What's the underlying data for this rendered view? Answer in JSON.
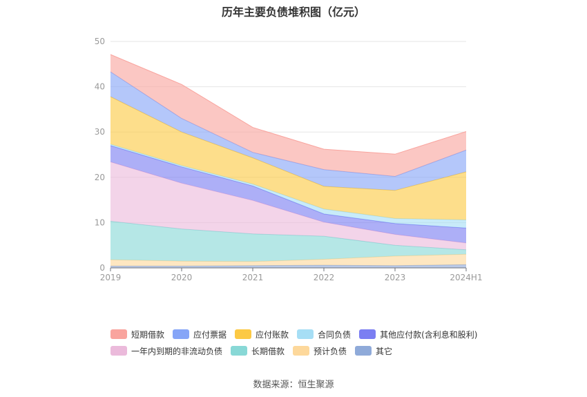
{
  "chart_data": {
    "type": "area",
    "stacked": true,
    "title": "历年主要负债堆积图（亿元）",
    "source": "数据来源：恒生聚源",
    "categories": [
      "2019",
      "2020",
      "2021",
      "2022",
      "2023",
      "2024H1"
    ],
    "ylim": [
      0,
      50
    ],
    "yticks": [
      0,
      10,
      20,
      30,
      40,
      50
    ],
    "grid": true,
    "legend_position": "bottom",
    "series": [
      {
        "name": "其它",
        "color": "#8faad9",
        "values": [
          0.4,
          0.4,
          0.5,
          0.6,
          0.5,
          0.7
        ]
      },
      {
        "name": "预计负债",
        "color": "#fdd89b",
        "values": [
          1.4,
          1.1,
          0.9,
          1.3,
          2.1,
          2.3
        ]
      },
      {
        "name": "长期借款",
        "color": "#88d8d6",
        "values": [
          8.5,
          7.1,
          6.1,
          5.1,
          2.4,
          1.0
        ]
      },
      {
        "name": "一年内到期的非流动负债",
        "color": "#ebbadb",
        "values": [
          13.1,
          10.1,
          7.4,
          3.1,
          2.4,
          1.5
        ]
      },
      {
        "name": "其他应付款(含利息和股利)",
        "color": "#7b7ef2",
        "values": [
          3.6,
          3.6,
          3.2,
          1.8,
          2.4,
          3.3
        ]
      },
      {
        "name": "合同负债",
        "color": "#a6def5",
        "values": [
          0.3,
          0.3,
          0.4,
          1.1,
          1.1,
          1.8
        ]
      },
      {
        "name": "应付账款",
        "color": "#fcc944",
        "values": [
          10.5,
          7.4,
          5.8,
          5.0,
          6.2,
          10.6
        ]
      },
      {
        "name": "应付票据",
        "color": "#86a5f7",
        "values": [
          5.5,
          3.0,
          1.2,
          3.7,
          3.1,
          4.8
        ]
      },
      {
        "name": "短期借款",
        "color": "#f9a49e",
        "values": [
          3.8,
          7.5,
          5.5,
          4.5,
          4.9,
          4.1
        ]
      }
    ],
    "legend_order": [
      "短期借款",
      "应付票据",
      "应付账款",
      "合同负债",
      "其他应付款(含利息和股利)",
      "一年内到期的非流动负债",
      "长期借款",
      "预计负债",
      "其它"
    ]
  }
}
